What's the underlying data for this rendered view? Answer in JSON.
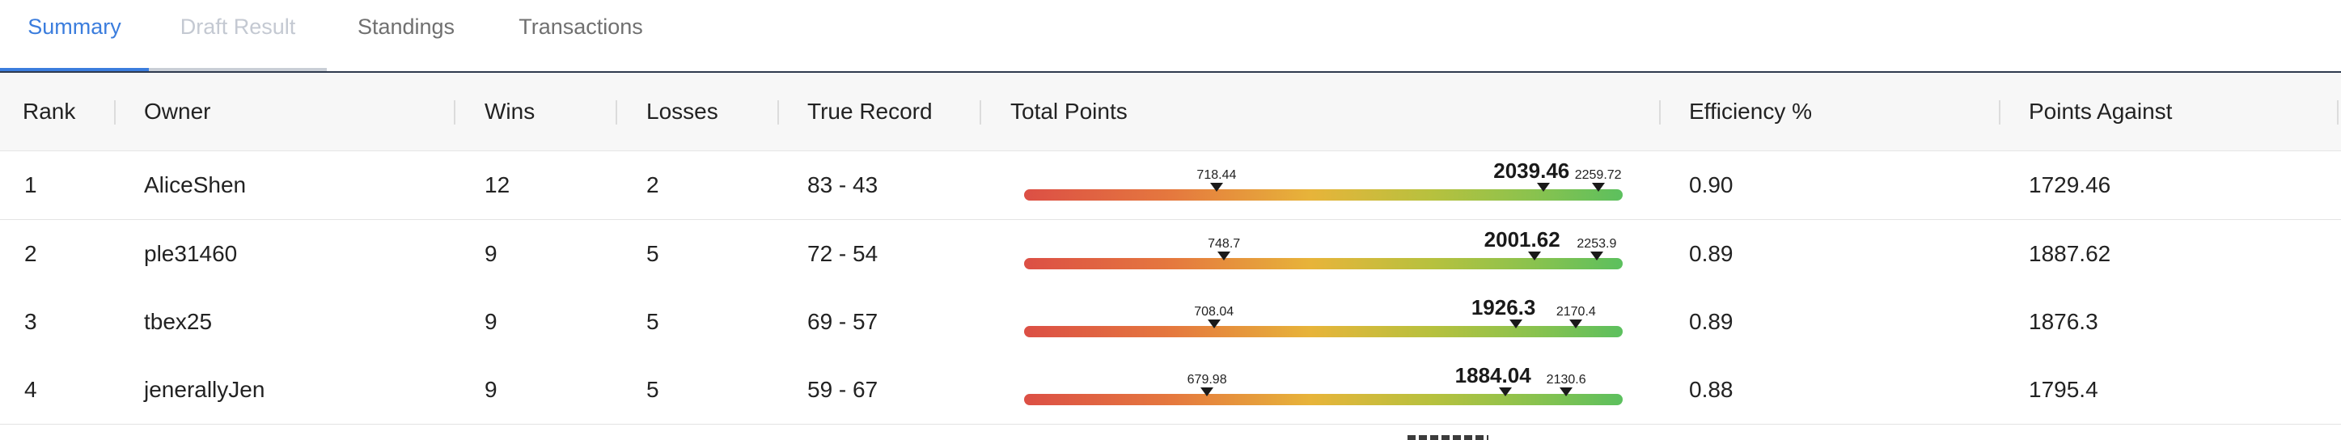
{
  "tabs": [
    {
      "label": "Summary",
      "state": "active"
    },
    {
      "label": "Draft Result",
      "state": "disabled"
    },
    {
      "label": "Standings",
      "state": "normal"
    },
    {
      "label": "Transactions",
      "state": "normal"
    }
  ],
  "table": {
    "columns": [
      "Rank",
      "Owner",
      "Wins",
      "Losses",
      "True Record",
      "Total Points",
      "Efficiency %",
      "Points Against"
    ],
    "rows": [
      {
        "rank": "1",
        "owner": "AliceShen",
        "wins": "12",
        "losses": "2",
        "true_record": "83 - 43",
        "points": {
          "min": 718.44,
          "value": 2039.46,
          "max": 2259.72,
          "min_label": "718.44",
          "value_label": "2039.46",
          "max_label": "2259.72"
        },
        "efficiency": "0.90",
        "points_against": "1729.46"
      },
      {
        "rank": "2",
        "owner": "ple31460",
        "wins": "9",
        "losses": "5",
        "true_record": "72 - 54",
        "points": {
          "min": 748.7,
          "value": 2001.62,
          "max": 2253.9,
          "min_label": "748.7",
          "value_label": "2001.62",
          "max_label": "2253.9"
        },
        "efficiency": "0.89",
        "points_against": "1887.62"
      },
      {
        "rank": "3",
        "owner": "tbex25",
        "wins": "9",
        "losses": "5",
        "true_record": "69 - 57",
        "points": {
          "min": 708.04,
          "value": 1926.3,
          "max": 2170.4,
          "min_label": "708.04",
          "value_label": "1926.3",
          "max_label": "2170.4"
        },
        "efficiency": "0.89",
        "points_against": "1876.3"
      },
      {
        "rank": "4",
        "owner": "jenerallyJen",
        "wins": "9",
        "losses": "5",
        "true_record": "59 - 67",
        "points": {
          "min": 679.98,
          "value": 1884.04,
          "max": 2130.6,
          "min_label": "679.98",
          "value_label": "1884.04",
          "max_label": "2130.6"
        },
        "efficiency": "0.88",
        "points_against": "1795.4"
      }
    ]
  },
  "colors": {
    "accent": "#3b7ddd",
    "bar_low": "#dc4f45",
    "bar_mid": "#e7b43a",
    "bar_high": "#5cc05e"
  }
}
